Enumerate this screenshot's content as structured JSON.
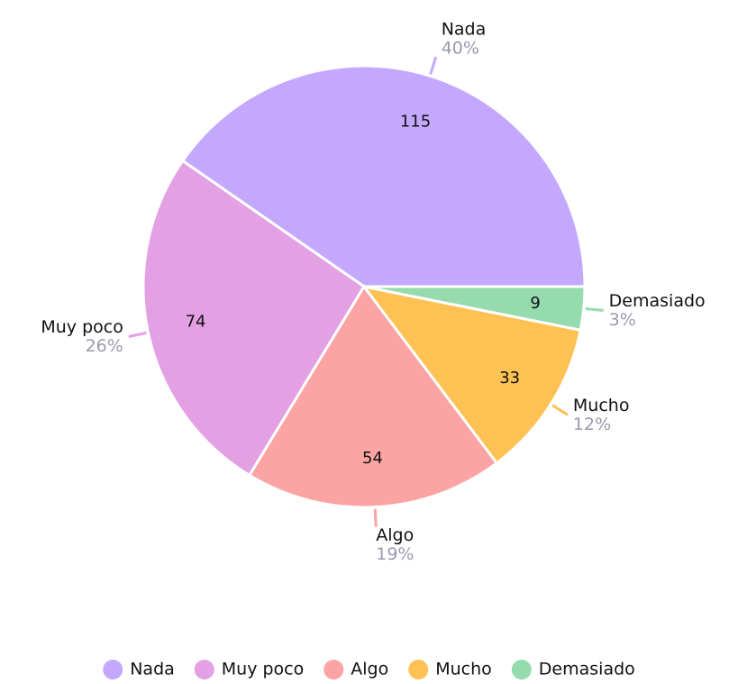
{
  "chart_data": {
    "type": "pie",
    "categories": [
      "Nada",
      "Muy poco",
      "Algo",
      "Mucho",
      "Demasiado"
    ],
    "values": [
      115,
      74,
      54,
      33,
      9
    ],
    "percent_labels": [
      "40%",
      "26%",
      "19%",
      "12%",
      "3%"
    ],
    "colors": [
      "#c4a8fe",
      "#e3a0e3",
      "#fca3a3",
      "#fec153",
      "#95dbae"
    ],
    "legend": "bottom"
  }
}
